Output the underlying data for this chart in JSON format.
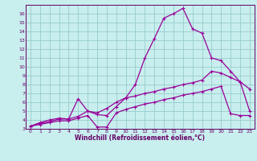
{
  "xlabel": "Windchill (Refroidissement éolien,°C)",
  "bg_color": "#c8eeee",
  "line_color": "#990099",
  "grid_color": "#99cccc",
  "axis_color": "#660066",
  "text_color": "#660066",
  "xlim": [
    -0.5,
    23.5
  ],
  "ylim": [
    3,
    17
  ],
  "yticks": [
    3,
    4,
    5,
    6,
    7,
    8,
    9,
    10,
    11,
    12,
    13,
    14,
    15,
    16
  ],
  "xticks": [
    0,
    1,
    2,
    3,
    4,
    5,
    6,
    7,
    8,
    9,
    10,
    11,
    12,
    13,
    14,
    15,
    16,
    17,
    18,
    19,
    20,
    21,
    22,
    23
  ],
  "line1_x": [
    0,
    1,
    2,
    3,
    4,
    5,
    6,
    7,
    8,
    9,
    10,
    11,
    12,
    13,
    14,
    15,
    16,
    17,
    18,
    19,
    20,
    21,
    22,
    23
  ],
  "line1_y": [
    3.3,
    3.7,
    4.0,
    4.2,
    4.1,
    6.4,
    5.0,
    4.6,
    4.5,
    5.5,
    6.5,
    8.0,
    11.0,
    13.2,
    15.5,
    16.0,
    16.6,
    14.3,
    13.8,
    11.0,
    10.7,
    9.5,
    8.3,
    7.5
  ],
  "line2_x": [
    0,
    1,
    2,
    3,
    4,
    5,
    6,
    7,
    8,
    9,
    10,
    11,
    12,
    13,
    14,
    15,
    16,
    17,
    18,
    19,
    20,
    21,
    22,
    23
  ],
  "line2_y": [
    3.3,
    3.6,
    3.8,
    4.1,
    4.1,
    4.4,
    5.0,
    4.8,
    5.3,
    6.0,
    6.5,
    6.7,
    7.0,
    7.2,
    7.5,
    7.7,
    8.0,
    8.2,
    8.5,
    9.5,
    9.3,
    8.8,
    8.3,
    5.0
  ],
  "line3_x": [
    0,
    1,
    2,
    3,
    4,
    5,
    6,
    7,
    8,
    9,
    10,
    11,
    12,
    13,
    14,
    15,
    16,
    17,
    18,
    19,
    20,
    21,
    22,
    23
  ],
  "line3_y": [
    3.3,
    3.5,
    3.7,
    3.9,
    3.9,
    4.2,
    4.5,
    3.2,
    3.2,
    4.8,
    5.2,
    5.5,
    5.8,
    6.0,
    6.3,
    6.5,
    6.8,
    7.0,
    7.2,
    7.5,
    7.8,
    4.7,
    4.5,
    4.5
  ]
}
